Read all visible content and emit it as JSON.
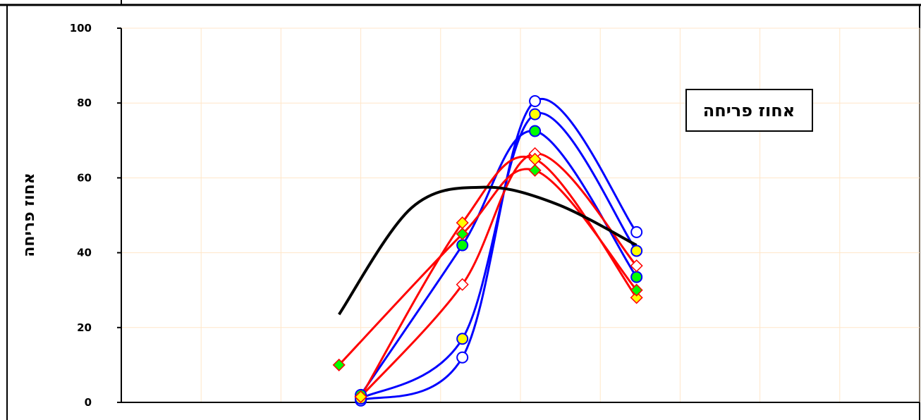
{
  "chart_data": {
    "type": "line",
    "title": "",
    "xlabel": "",
    "ylabel": "אחוז פריחה",
    "legend_label": "אחוז פריחה",
    "legend_position": "top-right",
    "grid": true,
    "xlim": [
      0,
      11
    ],
    "ylim": [
      0,
      100
    ],
    "yticks": [
      "0",
      "20",
      "40",
      "60",
      "80",
      "100"
    ],
    "colors": {
      "blue": "#0000ff",
      "red": "#ff0000",
      "black": "#000000",
      "yellow": "#ffff00",
      "green": "#00ff00",
      "white": "#ffffff",
      "grid": "#ffe6c8"
    },
    "series": [
      {
        "line": "blue",
        "marker": "circle",
        "fill": "white",
        "x": [
          3.3,
          4.7,
          5.7,
          7.1
        ],
        "y": [
          0.5,
          12,
          80.5,
          45.5
        ]
      },
      {
        "line": "blue",
        "marker": "circle",
        "fill": "yellow",
        "x": [
          3.3,
          4.7,
          5.7,
          7.1
        ],
        "y": [
          1,
          17,
          77,
          40.5
        ]
      },
      {
        "line": "blue",
        "marker": "circle",
        "fill": "green",
        "x": [
          3.3,
          4.7,
          5.7,
          7.1
        ],
        "y": [
          2,
          42,
          72.5,
          33.5
        ]
      },
      {
        "line": "red",
        "marker": "diamond",
        "fill": "white",
        "x": [
          3.3,
          4.7,
          5.7,
          7.1
        ],
        "y": [
          1.5,
          31.5,
          66.5,
          36.5
        ]
      },
      {
        "line": "red",
        "marker": "diamond",
        "fill": "yellow",
        "x": [
          3.3,
          4.7,
          5.7,
          7.1
        ],
        "y": [
          1.5,
          48,
          65,
          28
        ]
      },
      {
        "line": "red",
        "marker": "diamond",
        "fill": "green",
        "x": [
          3.0,
          4.7,
          5.7,
          7.1
        ],
        "y": [
          10,
          45,
          62,
          30
        ]
      },
      {
        "line": "black",
        "marker": "none",
        "fill": "none",
        "x": [
          3.0,
          4.0,
          5.0,
          6.0,
          7.1
        ],
        "y": [
          23.5,
          52,
          57.5,
          53,
          42
        ]
      }
    ]
  }
}
